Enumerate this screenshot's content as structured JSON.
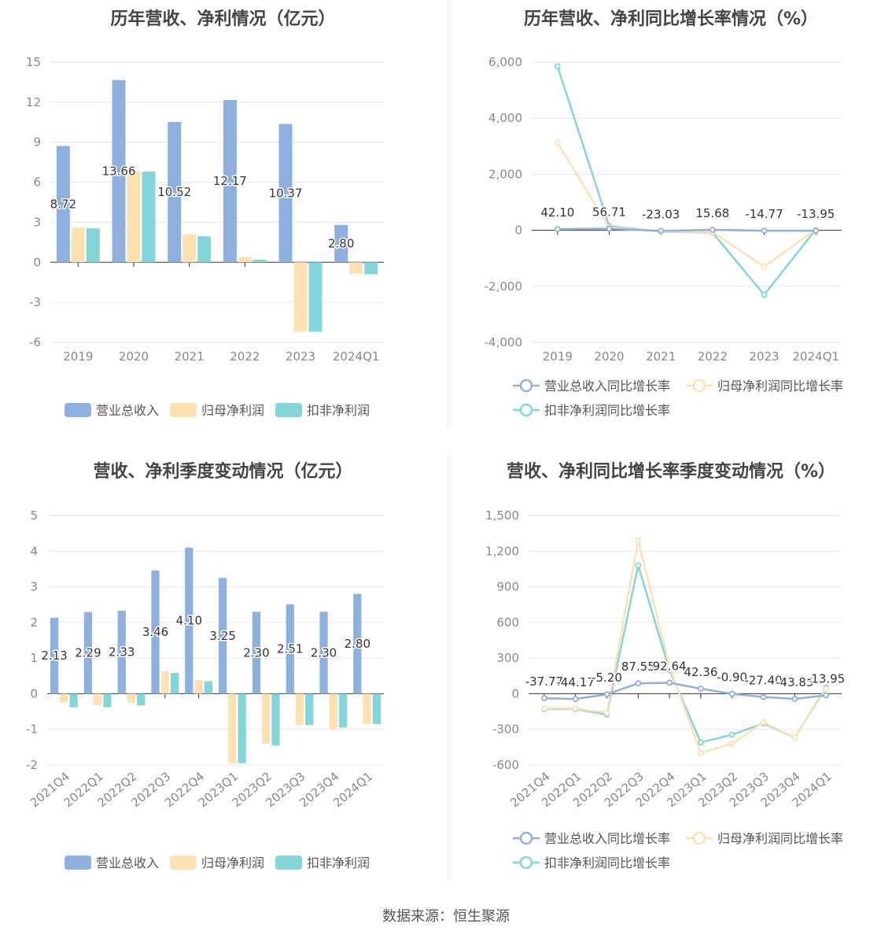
{
  "source_label": "数据来源：恒生聚源",
  "colors": {
    "revenue": "#8eb0de",
    "net_profit": "#fde1b0",
    "deducted_profit": "#82d6d9",
    "grid": "#e3e6ef",
    "axis": "#333333"
  },
  "chart_data": [
    {
      "id": "annual-amount",
      "type": "bar",
      "title": "历年营收、净利情况（亿元）",
      "categories": [
        "2019",
        "2020",
        "2021",
        "2022",
        "2023",
        "2024Q1"
      ],
      "ylim": [
        -6,
        15
      ],
      "yticks": [
        "15",
        "12",
        "9",
        "6",
        "3",
        "0",
        "-3",
        "-6"
      ],
      "ytick_values": [
        15,
        12,
        9,
        6,
        3,
        0,
        -3,
        -6
      ],
      "grid": true,
      "legend_position": "bottom",
      "series": [
        {
          "name": "营业总收入",
          "key": "revenue",
          "values": [
            8.72,
            13.66,
            10.52,
            12.17,
            10.37,
            2.8
          ],
          "labels": [
            "8.72",
            "13.66",
            "10.52",
            "12.17",
            "10.37",
            "2.80"
          ]
        },
        {
          "name": "归母净利润",
          "key": "net_profit",
          "values": [
            2.6,
            6.8,
            2.1,
            0.4,
            -5.2,
            -0.85
          ]
        },
        {
          "name": "扣非净利润",
          "key": "deducted_profit",
          "values": [
            2.55,
            6.8,
            1.95,
            0.2,
            -5.2,
            -0.9
          ]
        }
      ]
    },
    {
      "id": "annual-growth",
      "type": "line",
      "title": "历年营收、净利同比增长率情况（%）",
      "categories": [
        "2019",
        "2020",
        "2021",
        "2022",
        "2023",
        "2024Q1"
      ],
      "ylim": [
        -4000,
        6000
      ],
      "yticks": [
        "6,000",
        "4,000",
        "2,000",
        "0",
        "-2,000",
        "-4,000"
      ],
      "ytick_values": [
        6000,
        4000,
        2000,
        0,
        -2000,
        -4000
      ],
      "grid": true,
      "legend_position": "bottom",
      "series": [
        {
          "name": "营业总收入同比增长率",
          "key": "revenue",
          "values": [
            42.1,
            56.71,
            -23.03,
            15.68,
            -14.77,
            -13.95
          ],
          "labels": [
            "42.10",
            "56.71",
            "-23.03",
            "15.68",
            "-14.77",
            "-13.95"
          ]
        },
        {
          "name": "归母净利润同比增长率",
          "key": "net_profit",
          "values": [
            3120,
            100,
            -40,
            -60,
            -1300,
            30
          ]
        },
        {
          "name": "扣非净利润同比增长率",
          "key": "deducted_profit",
          "values": [
            5850,
            150,
            -50,
            -80,
            -2300,
            30
          ]
        }
      ]
    },
    {
      "id": "quarterly-amount",
      "type": "bar",
      "title": "营收、净利季度变动情况（亿元）",
      "categories": [
        "2021Q4",
        "2022Q1",
        "2022Q2",
        "2022Q3",
        "2022Q4",
        "2023Q1",
        "2023Q2",
        "2023Q3",
        "2023Q4",
        "2024Q1"
      ],
      "ylim": [
        -2,
        5
      ],
      "yticks": [
        "5",
        "4",
        "3",
        "2",
        "1",
        "0",
        "-1",
        "-2"
      ],
      "ytick_values": [
        5,
        4,
        3,
        2,
        1,
        0,
        -1,
        -2
      ],
      "grid": true,
      "legend_position": "bottom",
      "series": [
        {
          "name": "营业总收入",
          "key": "revenue",
          "values": [
            2.13,
            2.29,
            2.33,
            3.46,
            4.1,
            3.25,
            2.3,
            2.51,
            2.3,
            2.8
          ],
          "labels": [
            "2.13",
            "2.29",
            "2.33",
            "3.46",
            "4.10",
            "3.25",
            "2.30",
            "2.51",
            "2.30",
            "2.80"
          ]
        },
        {
          "name": "归母净利润",
          "key": "net_profit",
          "values": [
            -0.25,
            -0.32,
            -0.25,
            0.63,
            0.38,
            -1.95,
            -1.4,
            -0.88,
            -1.0,
            -0.85
          ]
        },
        {
          "name": "扣非净利润",
          "key": "deducted_profit",
          "values": [
            -0.38,
            -0.38,
            -0.33,
            0.58,
            0.35,
            -1.95,
            -1.45,
            -0.88,
            -0.95,
            -0.85
          ]
        }
      ]
    },
    {
      "id": "quarterly-growth",
      "type": "line",
      "title": "营收、净利同比增长率季度变动情况（%）",
      "categories": [
        "2021Q4",
        "2022Q1",
        "2022Q2",
        "2022Q3",
        "2022Q4",
        "2023Q1",
        "2023Q2",
        "2023Q3",
        "2023Q4",
        "2024Q1"
      ],
      "ylim": [
        -600,
        1500
      ],
      "yticks": [
        "1,500",
        "1,200",
        "900",
        "600",
        "300",
        "0",
        "-300",
        "-600"
      ],
      "ytick_values": [
        1500,
        1200,
        900,
        600,
        300,
        0,
        -300,
        -600
      ],
      "grid": true,
      "legend_position": "bottom",
      "series": [
        {
          "name": "营业总收入同比增长率",
          "key": "revenue",
          "values": [
            -37.77,
            -44.17,
            -5.2,
            87.55,
            92.64,
            42.36,
            -0.9,
            -27.4,
            -43.85,
            -13.95
          ],
          "labels": [
            "-37.77",
            "-44.17",
            "-5.20",
            "87.55",
            "92.64",
            "42.36",
            "-0.90",
            "-27.40",
            "-43.85",
            "-13.95"
          ]
        },
        {
          "name": "归母净利润同比增长率",
          "key": "net_profit",
          "values": [
            -125,
            -125,
            -160,
            1290,
            230,
            -500,
            -420,
            -240,
            -370,
            40
          ]
        },
        {
          "name": "扣非净利润同比增长率",
          "key": "deducted_profit",
          "values": [
            -130,
            -130,
            -175,
            1080,
            200,
            -410,
            -345,
            -250,
            -370,
            50
          ]
        }
      ]
    }
  ]
}
